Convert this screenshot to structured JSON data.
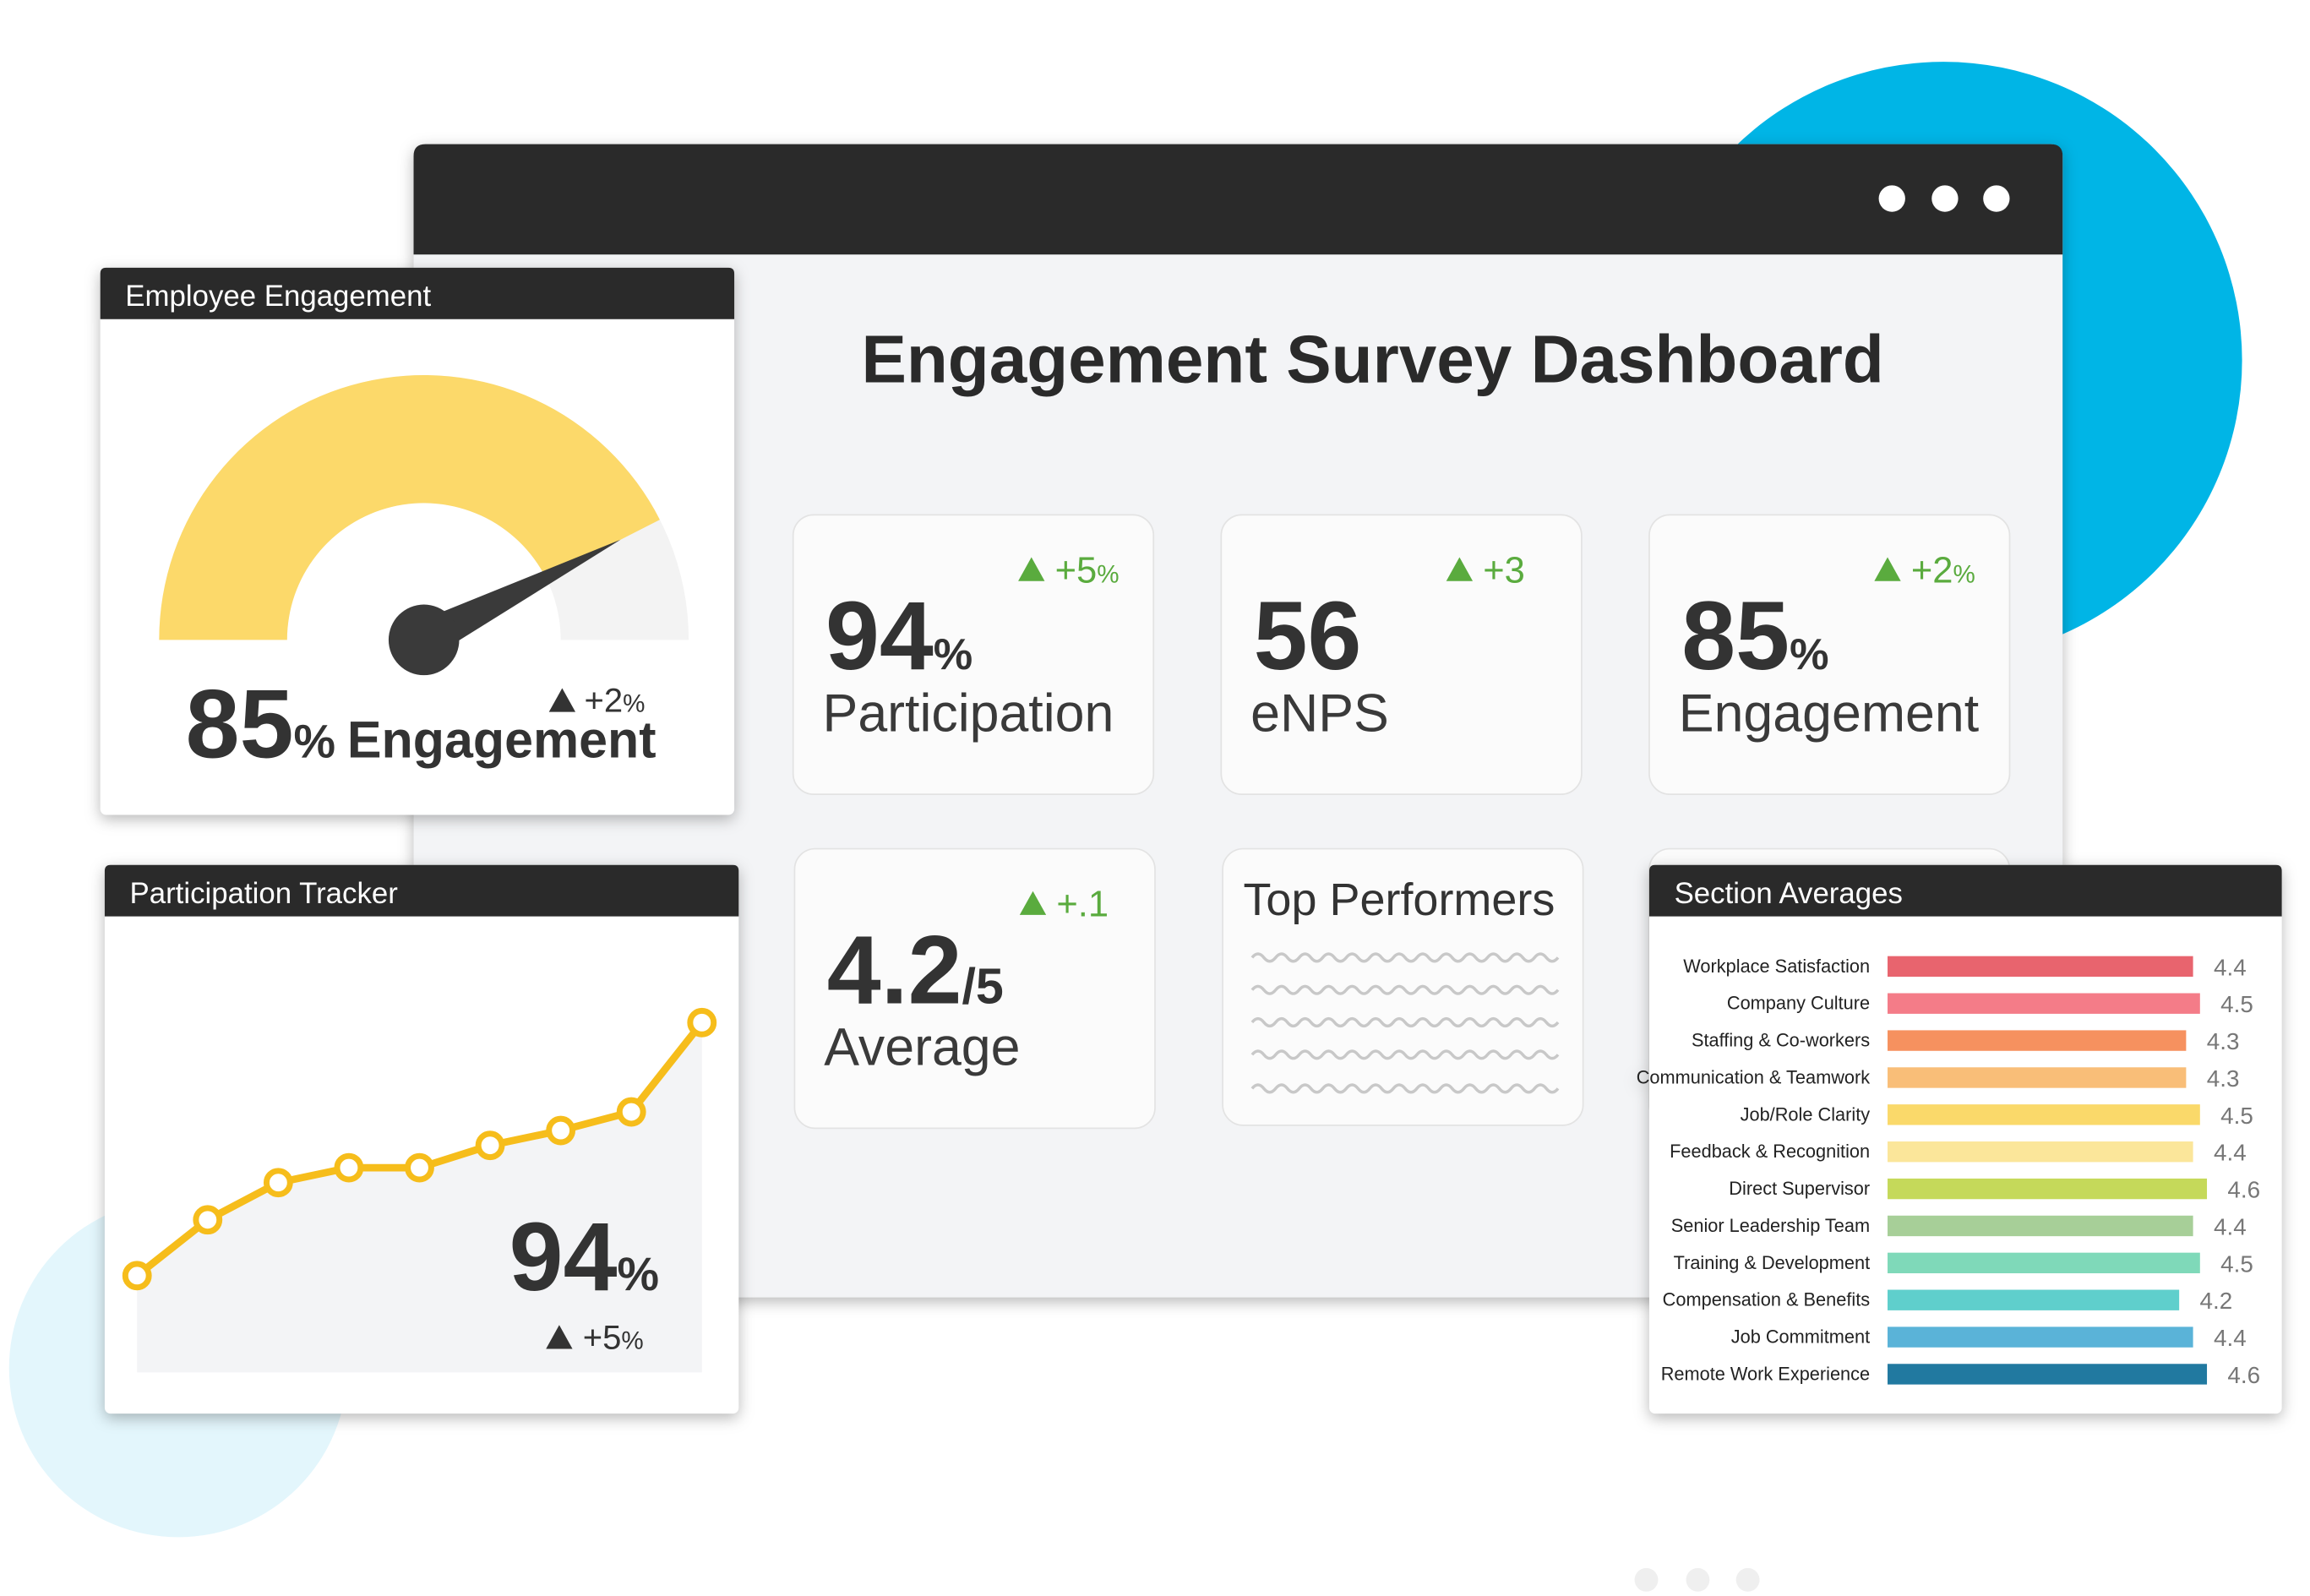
{
  "header": {
    "title": "Engagement Survey Dashboard"
  },
  "kpi_cards": [
    {
      "value": 94,
      "unit": "%",
      "label": "Participation",
      "change": "+5",
      "change_unit": "%"
    },
    {
      "value": 56,
      "label": "eNPS",
      "change": "+3"
    },
    {
      "value": 85,
      "unit": "%",
      "label": "Engagement",
      "change": "+2",
      "change_unit": "%"
    },
    {
      "value": 4.2,
      "unit": "/5",
      "label": "Average",
      "change": "+.1"
    }
  ],
  "top_performers": {
    "title": "Top Performers"
  },
  "engagement_gauge": {
    "title": "Employee Engagement",
    "value": 85,
    "unit": "%",
    "label": "Engagement",
    "change": "+2",
    "change_unit": "%",
    "range": [
      0,
      100
    ],
    "color": "#fcd96a"
  },
  "participation_tracker": {
    "title": "Participation Tracker",
    "type": "line",
    "values": [
      26,
      41,
      51,
      55,
      55,
      61,
      65,
      70,
      94
    ],
    "ylim": [
      0,
      100
    ],
    "color": "#f6bd1b",
    "value": 94,
    "unit": "%",
    "change": "+5",
    "change_unit": "%"
  },
  "section_averages": {
    "title": "Section Averages",
    "type": "bar",
    "categories": [
      "Workplace Satisfaction",
      "Company Culture",
      "Staffing & Co-workers",
      "Communication & Teamwork",
      "Job/Role Clarity",
      "Feedback & Recognition",
      "Direct Supervisor",
      "Senior Leadership Team",
      "Training & Development",
      "Compensation & Benefits",
      "Job Commitment",
      "Remote Work Experience"
    ],
    "values": [
      4.4,
      4.5,
      4.3,
      4.3,
      4.5,
      4.4,
      4.6,
      4.4,
      4.5,
      4.2,
      4.4,
      4.6
    ],
    "colors": [
      "#e8646e",
      "#f47c88",
      "#f6915f",
      "#f9be78",
      "#fad96a",
      "#fbe69a",
      "#c5d95a",
      "#a7cf98",
      "#7fd9b9",
      "#5fcfcc",
      "#5ab3d8",
      "#2179a0"
    ],
    "xlim": [
      0,
      5
    ]
  }
}
